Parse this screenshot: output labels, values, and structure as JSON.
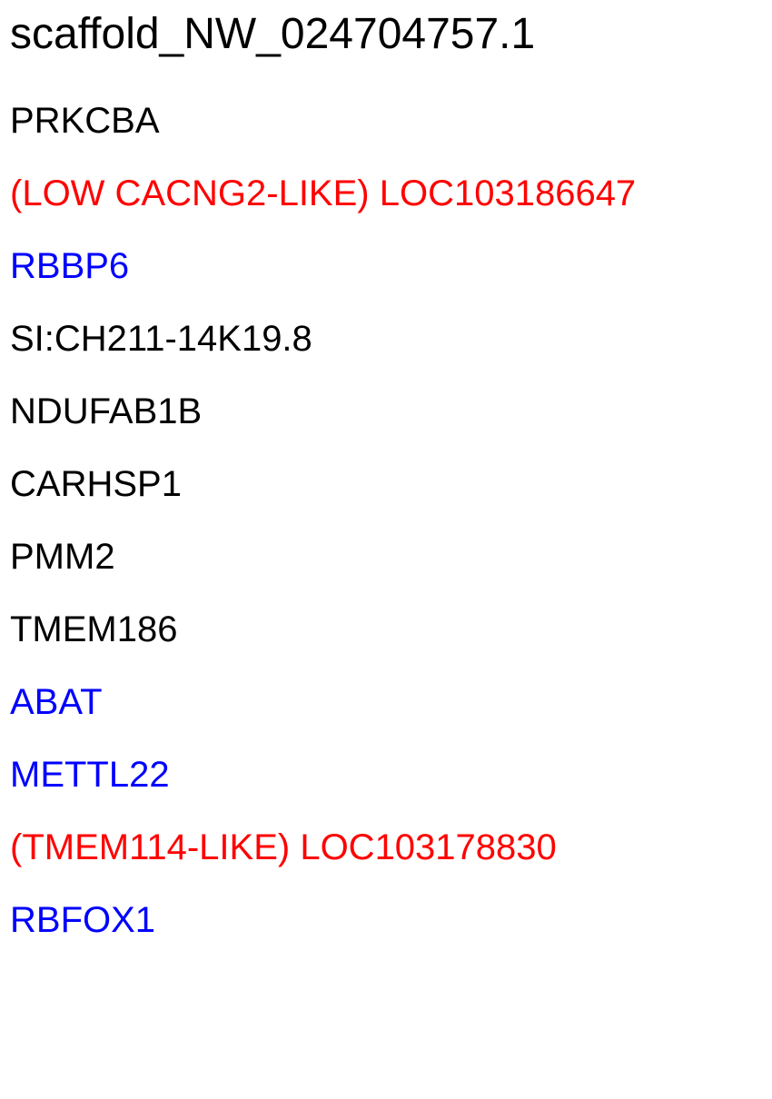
{
  "title": "scaffold_NW_024704757.1",
  "colors": {
    "black": "#000000",
    "red": "#ff0000",
    "blue": "#0000ff"
  },
  "genes": [
    {
      "label": "PRKCBA",
      "color": "#000000"
    },
    {
      "label": "(LOW CACNG2-LIKE) LOC103186647",
      "color": "#ff0000"
    },
    {
      "label": "RBBP6",
      "color": "#0000ff"
    },
    {
      "label": "SI:CH211-14K19.8",
      "color": "#000000"
    },
    {
      "label": "NDUFAB1B",
      "color": "#000000"
    },
    {
      "label": "CARHSP1",
      "color": "#000000"
    },
    {
      "label": "PMM2",
      "color": "#000000"
    },
    {
      "label": "TMEM186",
      "color": "#000000"
    },
    {
      "label": "ABAT",
      "color": "#0000ff"
    },
    {
      "label": "METTL22",
      "color": "#0000ff"
    },
    {
      "label": "(TMEM114-LIKE) LOC103178830",
      "color": "#ff0000"
    },
    {
      "label": "RBFOX1",
      "color": "#0000ff"
    }
  ]
}
